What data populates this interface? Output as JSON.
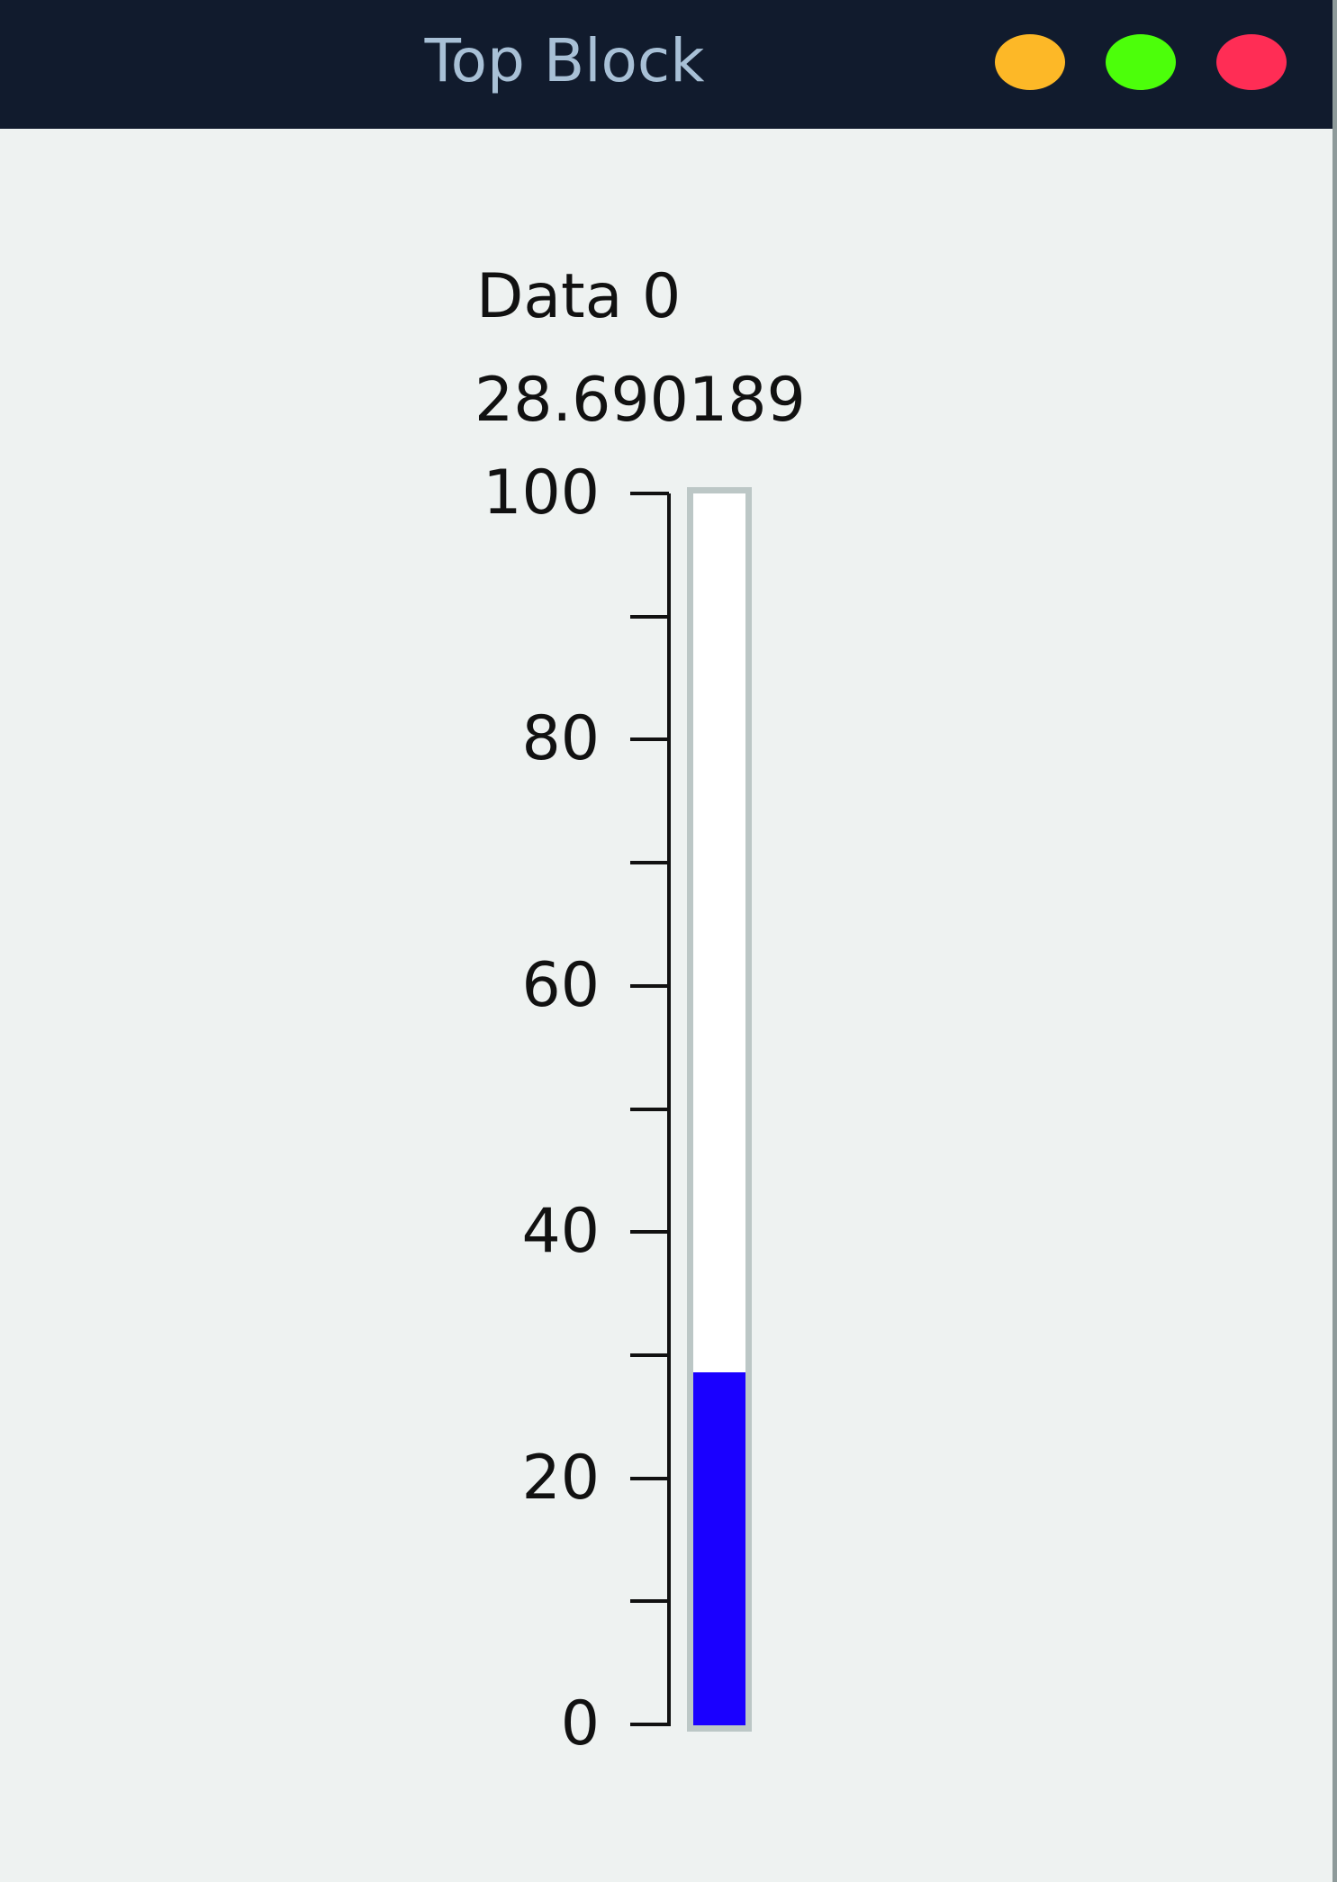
{
  "window": {
    "title": "Top Block",
    "buttons": [
      {
        "name": "minimize",
        "color": "#fdb827"
      },
      {
        "name": "maximize",
        "color": "#4cff0a"
      },
      {
        "name": "close",
        "color": "#ff2d55"
      }
    ]
  },
  "gauge": {
    "label": "Data 0",
    "value_text": "28.690189",
    "value": 28.690189,
    "min": 0,
    "max": 100,
    "major_ticks": [
      "0",
      "20",
      "40",
      "60",
      "80",
      "100"
    ],
    "minor_step": 10,
    "fill_color": "#1a00ff"
  }
}
